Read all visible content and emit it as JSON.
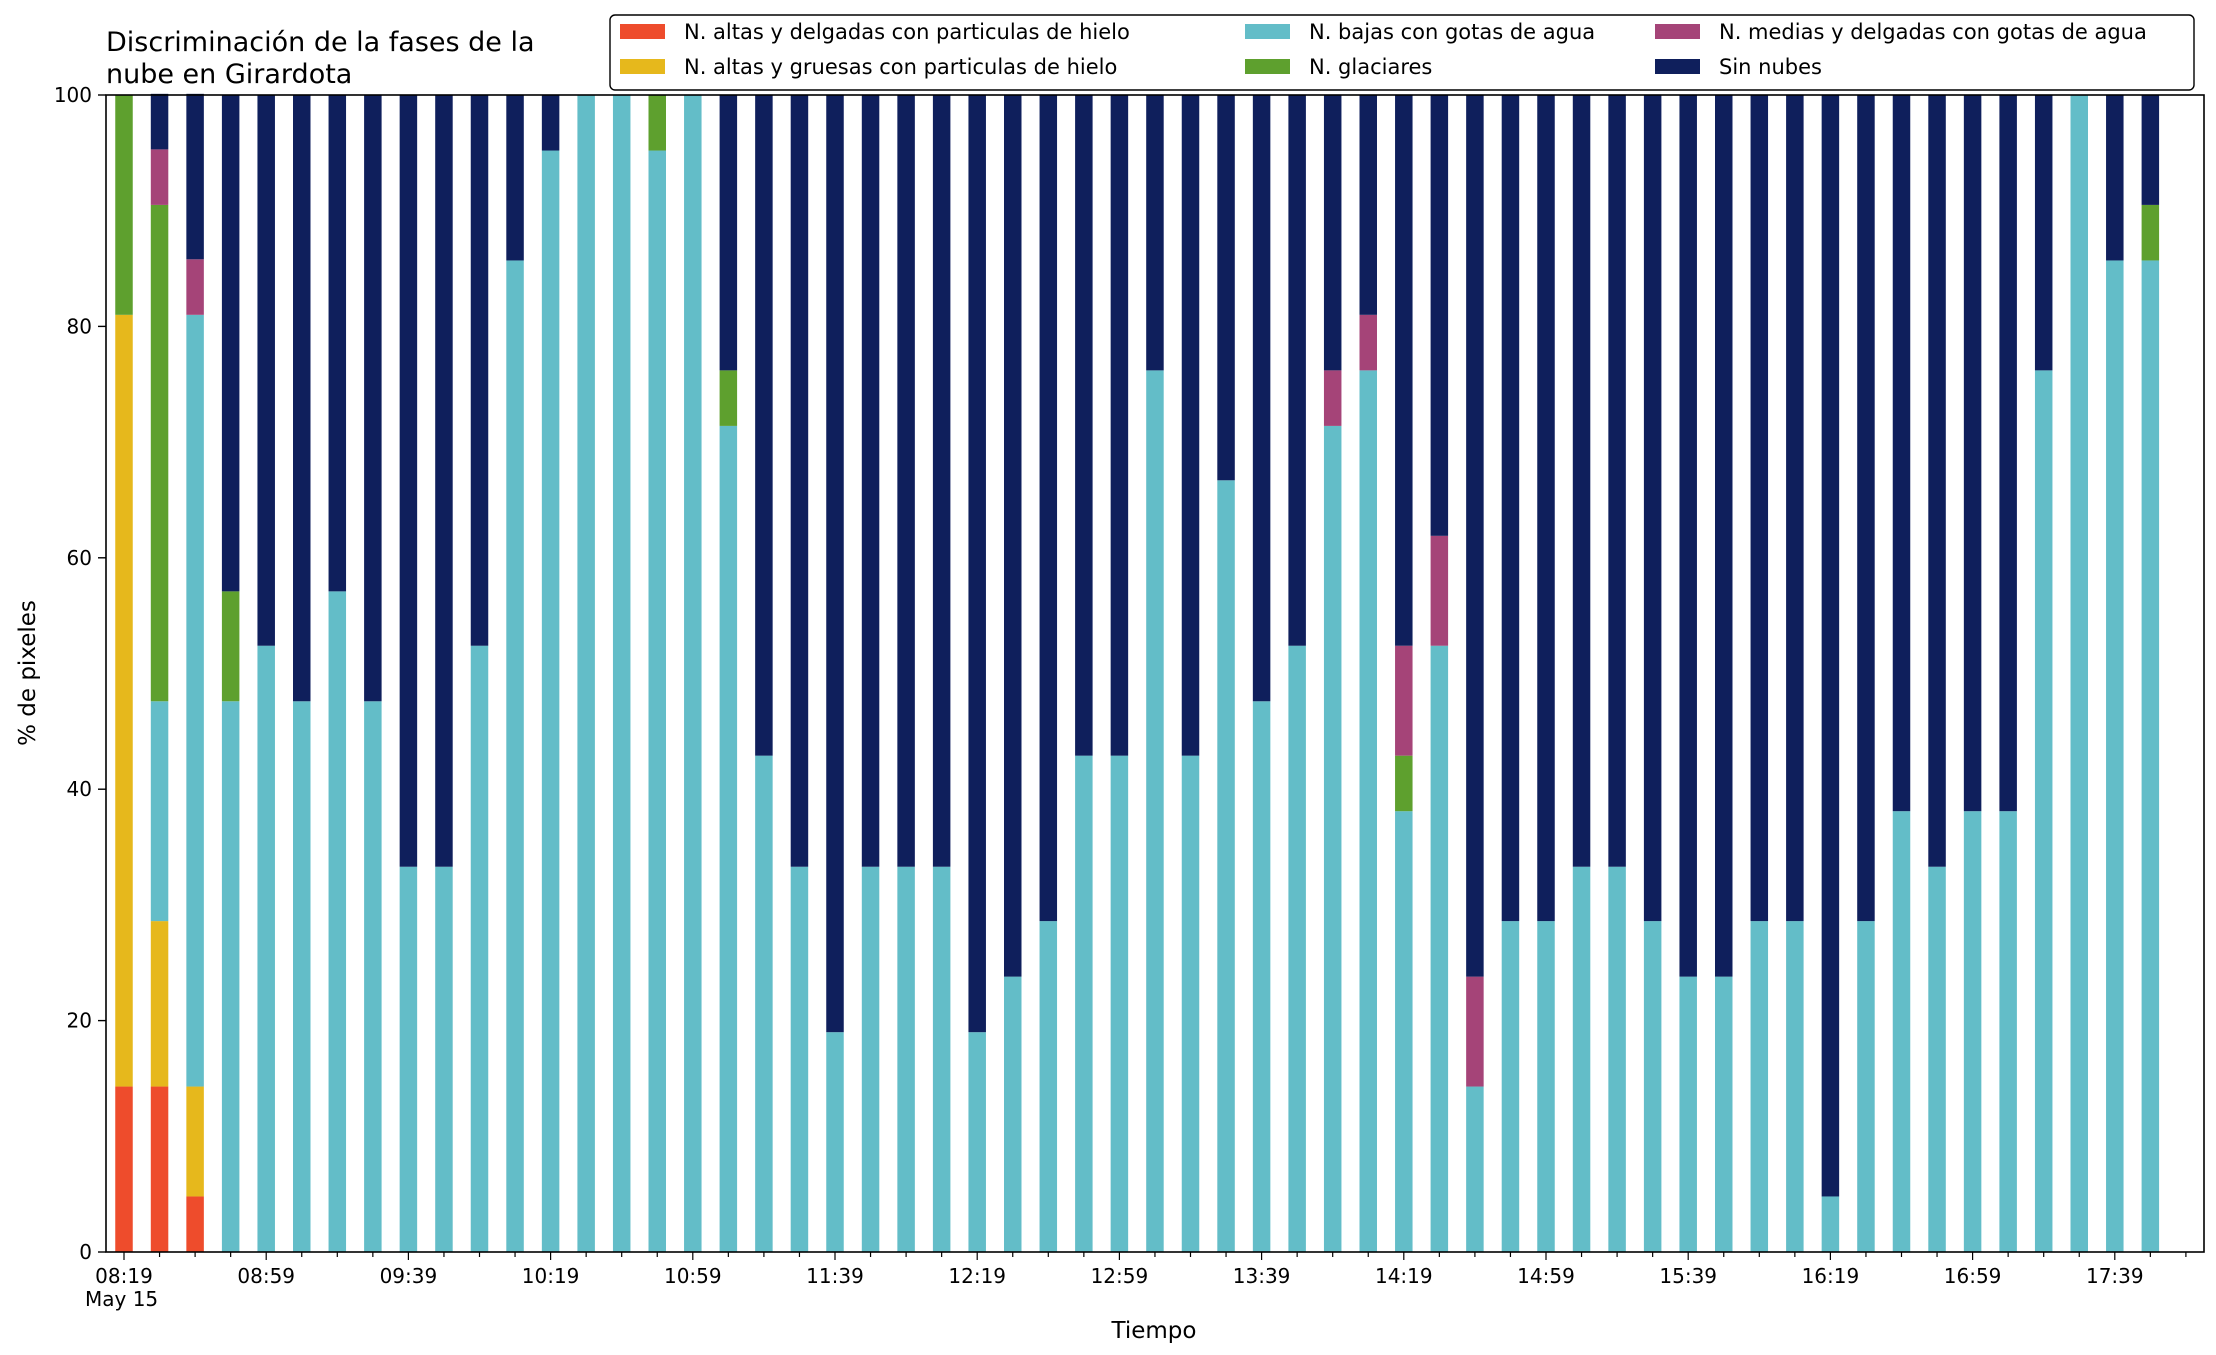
{
  "chart_data": {
    "type": "bar",
    "stacked": true,
    "title_lines": [
      "Discriminación de la fases de la",
      "nube en Girardota"
    ],
    "xlabel": "Tiempo",
    "ylabel": "% de pixeles",
    "ylim": [
      0,
      100
    ],
    "yticks": [
      "0",
      "20",
      "40",
      "60",
      "80",
      "100"
    ],
    "x_start": "08:19",
    "x_interval_minutes": 10,
    "x_tick_labels": [
      "08:19",
      "08:59",
      "09:39",
      "10:19",
      "10:59",
      "11:39",
      "12:19",
      "12:59",
      "13:39",
      "14:19",
      "14:59",
      "15:39",
      "16:19",
      "16:59",
      "17:39"
    ],
    "x_date_label": "May 15",
    "legend_position": "top-right",
    "grid": false,
    "series": [
      {
        "name": "N. altas y delgadas con particulas de hielo",
        "color": "#ee4c2c",
        "values": [
          14.3,
          14.3,
          4.8,
          0,
          0,
          0,
          0,
          0,
          0,
          0,
          0,
          0,
          0,
          0,
          0,
          0,
          0,
          0,
          0,
          0,
          0,
          0,
          0,
          0,
          0,
          0,
          0,
          0,
          0,
          0,
          0,
          0,
          0,
          0,
          0,
          0,
          0,
          0,
          0,
          0,
          0,
          0,
          0,
          0,
          0,
          0,
          0,
          0,
          0,
          0,
          0,
          0,
          0,
          0,
          0,
          0,
          0,
          0
        ]
      },
      {
        "name": "N. altas y gruesas con particulas de hielo",
        "color": "#e6b81c",
        "values": [
          66.7,
          14.3,
          9.5,
          0,
          0,
          0,
          0,
          0,
          0,
          0,
          0,
          0,
          0,
          0,
          0,
          0,
          0,
          0,
          0,
          0,
          0,
          0,
          0,
          0,
          0,
          0,
          0,
          0,
          0,
          0,
          0,
          0,
          0,
          0,
          0,
          0,
          0,
          0,
          0,
          0,
          0,
          0,
          0,
          0,
          0,
          0,
          0,
          0,
          0,
          0,
          0,
          0,
          0,
          0,
          0,
          0,
          0,
          0
        ]
      },
      {
        "name": "N. bajas con gotas de agua",
        "color": "#63bdc8",
        "values": [
          0,
          19.0,
          66.7,
          47.6,
          52.4,
          47.6,
          57.1,
          47.6,
          33.3,
          33.3,
          52.4,
          85.7,
          95.2,
          100,
          100,
          95.2,
          100,
          71.4,
          42.9,
          33.3,
          19.0,
          33.3,
          33.3,
          33.3,
          19.0,
          23.8,
          28.6,
          42.9,
          42.9,
          76.2,
          42.9,
          66.7,
          47.6,
          52.4,
          71.4,
          76.2,
          38.1,
          52.4,
          14.3,
          28.6,
          28.6,
          33.3,
          33.3,
          28.6,
          23.8,
          23.8,
          28.6,
          28.6,
          4.8,
          28.6,
          38.1,
          33.3,
          38.1,
          38.1,
          76.2,
          100,
          85.7,
          85.7
        ]
      },
      {
        "name": "N. glaciares",
        "color": "#5ea02e",
        "values": [
          19.0,
          42.9,
          0,
          9.5,
          0,
          0,
          0,
          0,
          0,
          0,
          0,
          0,
          0,
          0,
          0,
          4.8,
          0,
          4.8,
          0,
          0,
          0,
          0,
          0,
          0,
          0,
          0,
          0,
          0,
          0,
          0,
          0,
          0,
          0,
          0,
          0,
          0,
          4.8,
          0,
          0,
          0,
          0,
          0,
          0,
          0,
          0,
          0,
          0,
          0,
          0,
          0,
          0,
          0,
          0,
          0,
          0,
          0,
          0,
          4.8
        ]
      },
      {
        "name": "N. medias y delgadas con gotas de agua",
        "color": "#a54478",
        "values": [
          0,
          4.8,
          4.8,
          0,
          0,
          0,
          0,
          0,
          0,
          0,
          0,
          0,
          0,
          0,
          0,
          0,
          0,
          0,
          0,
          0,
          0,
          0,
          0,
          0,
          0,
          0,
          0,
          0,
          0,
          0,
          0,
          0,
          0,
          0,
          4.8,
          4.8,
          9.5,
          9.5,
          9.5,
          0,
          0,
          0,
          0,
          0,
          0,
          0,
          0,
          0,
          0,
          0,
          0,
          0,
          0,
          0,
          0,
          0,
          0,
          0
        ]
      },
      {
        "name": "Sin nubes",
        "color": "#0f1f5c",
        "values": [
          0,
          4.8,
          14.3,
          42.9,
          47.6,
          52.4,
          42.9,
          52.4,
          66.7,
          66.7,
          47.6,
          14.3,
          4.8,
          0,
          0,
          0,
          0,
          23.8,
          57.1,
          66.7,
          81.0,
          66.7,
          66.7,
          66.7,
          81.0,
          76.2,
          71.4,
          57.1,
          57.1,
          23.8,
          57.1,
          33.3,
          52.4,
          47.6,
          23.8,
          19.0,
          47.6,
          38.1,
          76.2,
          71.4,
          71.4,
          66.7,
          66.7,
          71.4,
          76.2,
          76.2,
          71.4,
          71.4,
          95.2,
          71.4,
          61.9,
          66.7,
          61.9,
          61.9,
          23.8,
          0,
          14.3,
          9.5
        ]
      }
    ]
  }
}
